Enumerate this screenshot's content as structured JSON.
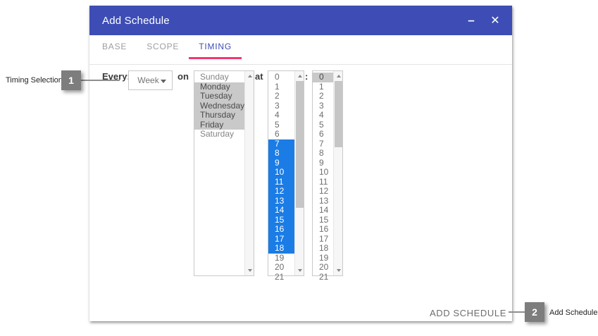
{
  "dialog": {
    "title": "Add Schedule",
    "controls": {
      "minimize_icon": "–",
      "close_icon": "✕"
    },
    "tabs": [
      {
        "label": "BASE"
      },
      {
        "label": "SCOPE"
      },
      {
        "label": "TIMING"
      }
    ],
    "active_tab": "TIMING",
    "timing": {
      "every_label": "Every:",
      "frequency": {
        "value": "Week"
      },
      "on_label": "on",
      "at_label": "at",
      "separator": ":",
      "day_list": {
        "items": [
          "Sunday",
          "Monday",
          "Tuesday",
          "Wednesday",
          "Thursday",
          "Friday",
          "Saturday"
        ],
        "selected": [
          "Monday",
          "Tuesday",
          "Wednesday",
          "Thursday",
          "Friday"
        ]
      },
      "hour_list": {
        "items": [
          "0",
          "1",
          "2",
          "3",
          "4",
          "5",
          "6",
          "7",
          "8",
          "9",
          "10",
          "11",
          "12",
          "13",
          "14",
          "15",
          "16",
          "17",
          "18",
          "19",
          "20",
          "21"
        ],
        "selected": [
          "7",
          "8",
          "9",
          "10",
          "11",
          "12",
          "13",
          "14",
          "15",
          "16",
          "17",
          "18"
        ]
      },
      "minute_list": {
        "items": [
          "0",
          "1",
          "2",
          "3",
          "4",
          "5",
          "6",
          "7",
          "8",
          "9",
          "10",
          "11",
          "12",
          "13",
          "14",
          "15",
          "16",
          "17",
          "18",
          "19",
          "20",
          "21"
        ],
        "selected": [
          "0"
        ]
      }
    },
    "footer": {
      "add_schedule_label": "ADD SCHEDULE"
    }
  },
  "annotations": [
    {
      "badge": "1",
      "label": "Timing Selection"
    },
    {
      "badge": "2",
      "label": "Add Schedule"
    }
  ],
  "colors": {
    "titlebar": "#3d4db5",
    "tab_active": "#3d4db5",
    "tab_underline": "#f3376f",
    "selection_blue": "#1b7ce5",
    "selection_gray": "#c9c9c9"
  }
}
